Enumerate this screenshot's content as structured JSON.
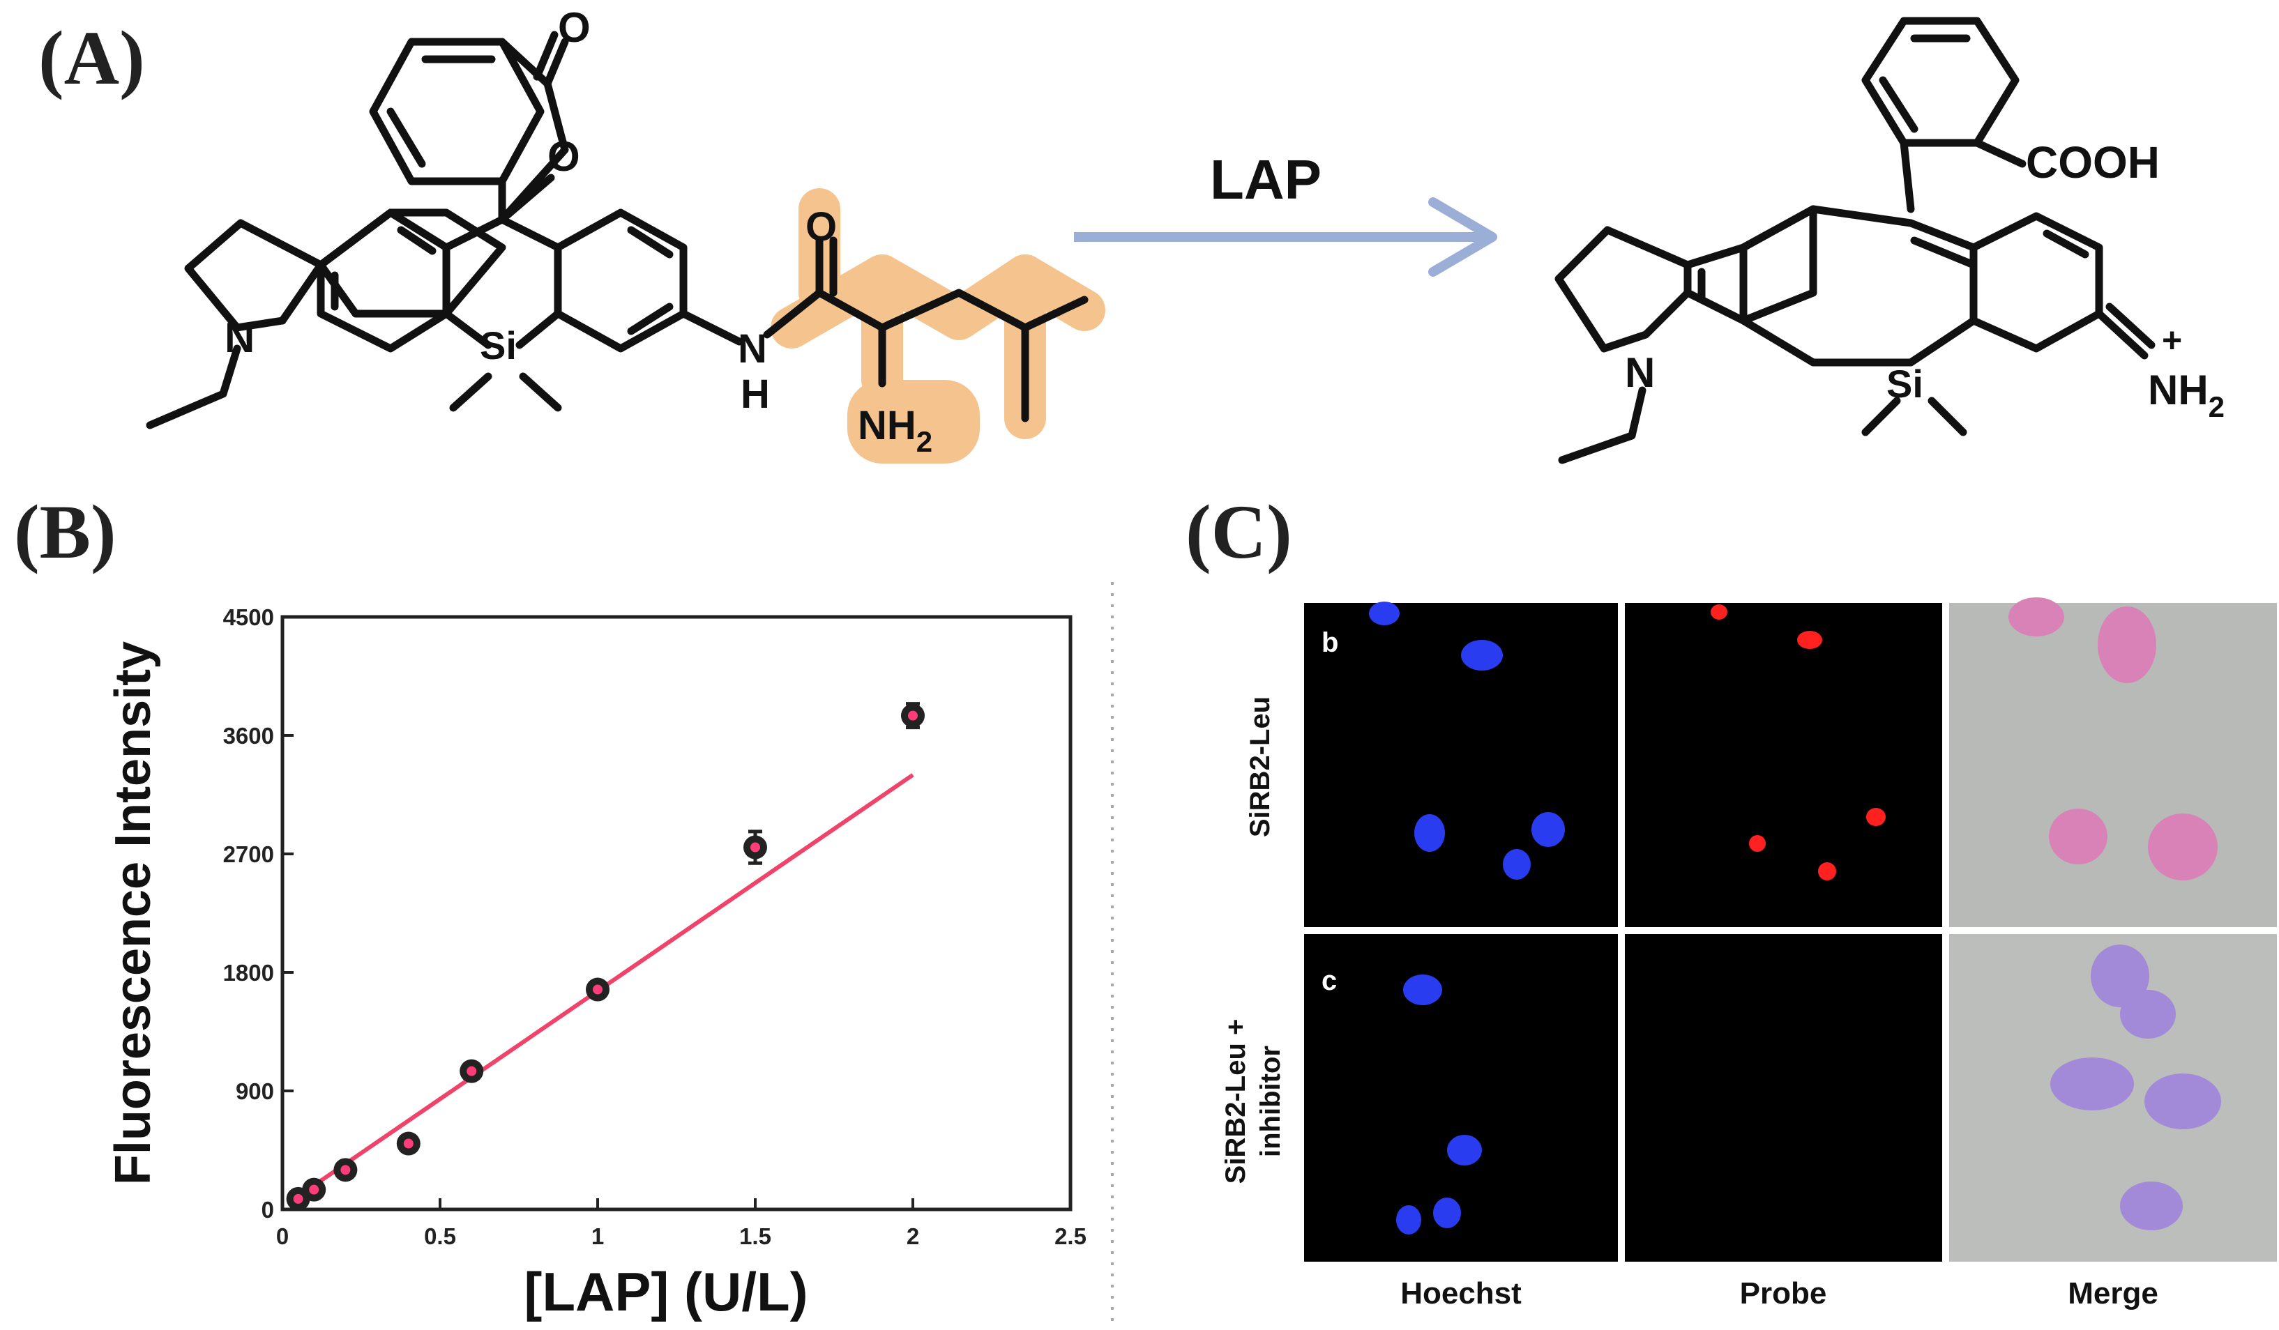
{
  "panels": {
    "a_label": "(A)",
    "b_label": "(B)",
    "c_label": "(C)"
  },
  "reaction": {
    "enzyme": "LAP",
    "arrow_color": "#9aaed6",
    "highlight_color": "#f5c48e",
    "left": {
      "carbonyl_o": "O",
      "ring_o": "O",
      "n_amine": "N",
      "silicon": "Si",
      "amide_n": "N",
      "amide_h": "H",
      "amide_o": "O",
      "nh2_main": "NH",
      "nh2_sub": "2"
    },
    "right": {
      "cooh": "COOH",
      "n_amine": "N",
      "silicon": "Si",
      "nh2_main": "NH",
      "nh2_sub": "2",
      "charge": "+"
    }
  },
  "chart_data": {
    "type": "scatter",
    "title": "",
    "xlabel": "[LAP] (U/L)",
    "ylabel": "Fluorescence Intensity",
    "xlim": [
      0,
      2.5
    ],
    "ylim": [
      0,
      4500
    ],
    "xticks": [
      "0",
      "0.5",
      "1",
      "1.5",
      "2",
      "2.5"
    ],
    "xtick_values": [
      0,
      0.5,
      1,
      1.5,
      2,
      2.5
    ],
    "yticks": [
      "0",
      "900",
      "1800",
      "2700",
      "3600",
      "4500"
    ],
    "ytick_values": [
      0,
      900,
      1800,
      2700,
      3600,
      4500
    ],
    "points": [
      {
        "x": 0.05,
        "y": 80,
        "err": 30
      },
      {
        "x": 0.1,
        "y": 150,
        "err": 30
      },
      {
        "x": 0.2,
        "y": 300,
        "err": 30
      },
      {
        "x": 0.4,
        "y": 500,
        "err": 35
      },
      {
        "x": 0.6,
        "y": 1050,
        "err": 40
      },
      {
        "x": 1.0,
        "y": 1670,
        "err": 45
      },
      {
        "x": 1.5,
        "y": 2750,
        "err": 120
      },
      {
        "x": 2.0,
        "y": 3750,
        "err": 90
      }
    ],
    "fit_line": {
      "x": [
        0.05,
        2.0
      ],
      "y": [
        100,
        3300
      ]
    },
    "fit_color": "#f0436a",
    "marker_color": "#222222",
    "marker_center_color": "#ff3d7a"
  },
  "microscopy": {
    "columns": [
      "Hoechst",
      "Probe",
      "Merge"
    ],
    "rows": [
      {
        "tag": "b",
        "label_lines": [
          "SiRB2-Leu"
        ]
      },
      {
        "tag": "c",
        "label_lines": [
          "SiRB2-Leu +",
          "inhibitor"
        ]
      }
    ],
    "colors": {
      "hoechst": "#2a3cf0",
      "probe": "#ff2020",
      "merge_bg": "#b8bab8",
      "merge_cell_b": "#d882b8",
      "merge_cell_c": "#a38ad8"
    }
  }
}
